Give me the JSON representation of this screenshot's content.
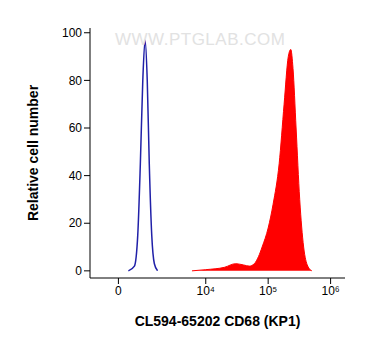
{
  "chart_data": {
    "type": "histogram",
    "x_label": "CL594-65202 CD68 (KP1)",
    "y_label": "Relative cell number",
    "annotations": [
      "WWW.PTGLAB.COM"
    ],
    "xlim": [
      -1000,
      1700000
    ],
    "xticks": [
      0,
      {
        "value": 10000,
        "label": "10⁴"
      },
      {
        "value": 100000,
        "label": "10⁵"
      },
      {
        "value": 1000000,
        "label": "10⁶"
      }
    ],
    "ylim": [
      -3,
      102
    ],
    "yticks": [
      0,
      20,
      40,
      60,
      80,
      100
    ],
    "grid": false,
    "series": [
      {
        "type": "line",
        "color": "#2020a8",
        "x": [
          300,
          500,
          620,
          720,
          820,
          920,
          1020,
          1120,
          1250,
          1400,
          1600
        ],
        "values": [
          0,
          2,
          15,
          45,
          80,
          97,
          80,
          45,
          15,
          3,
          0
        ]
      },
      {
        "type": "area",
        "color": "#ff0000",
        "x": [
          6000,
          10000,
          20000,
          30000,
          40000,
          50000,
          60000,
          70000,
          80000,
          100000,
          120000,
          150000,
          180000,
          210000,
          230000,
          250000,
          280000,
          320000,
          370000,
          430000,
          500000
        ],
        "values": [
          0,
          0.5,
          1.5,
          3,
          2.5,
          2,
          3,
          6,
          10,
          18,
          28,
          45,
          70,
          90,
          93,
          85,
          60,
          30,
          10,
          2,
          0
        ]
      }
    ]
  }
}
